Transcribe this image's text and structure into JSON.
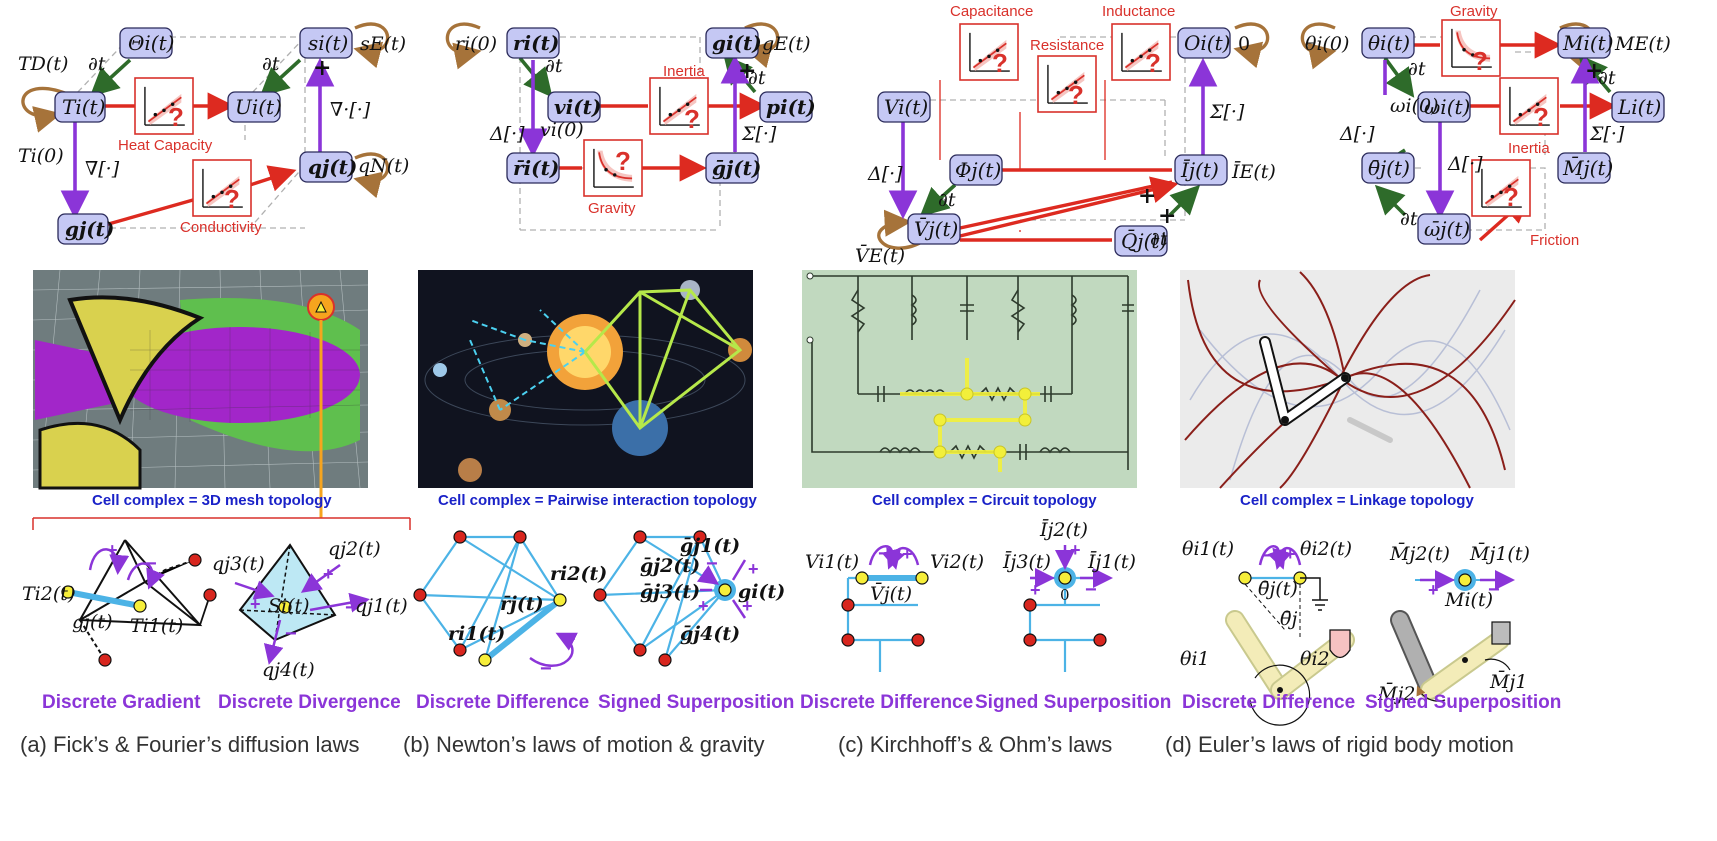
{
  "panels": {
    "a": {
      "nodes": {
        "theta": "Θi(t)",
        "s": "si(t)",
        "T": "Ti(t)",
        "U": "Ui(t)",
        "q": "qj(t)",
        "g": "gj(t)"
      },
      "laws": [
        "Heat Capacity",
        "Conductivity"
      ],
      "labels": {
        "TD": "TD(t)",
        "T0": "Ti(0)",
        "sE": "sE(t)",
        "qN": "qN(t)",
        "dt1": "∂t",
        "dt2": "∂t",
        "grad": "∇[·]",
        "div": "∇·[·]",
        "plus": "+"
      },
      "cell_caption": "Cell complex = 3D mesh topology",
      "bottom": {
        "t_i2": "Ti2(t)",
        "g_j": "gj(t)",
        "t_i1": "Ti1(t)",
        "q_j3": "qj3(t)",
        "q_j2": "qj2(t)",
        "s_i": "Si(t)",
        "q_j1": "qj1(t)",
        "q_j4": "qj4(t)"
      },
      "ops": [
        "Discrete Gradient",
        "Discrete Divergence"
      ],
      "caption": "(a) Fick’s & Fourier’s diffusion laws"
    },
    "b": {
      "nodes": {
        "r": "ri(t)",
        "g": "gi(t)",
        "v": "vi(t)",
        "p": "pi(t)",
        "rbar": "r̄i(t)",
        "gbar": "ḡj(t)"
      },
      "laws": [
        "Inertia",
        "Gravity"
      ],
      "labels": {
        "r0": "ri(0)",
        "gE": "gE(t)",
        "v0": "vi(0)",
        "dt1": "∂t",
        "dt2": "∂t",
        "lap": "Δ[·]",
        "sum": "Σ[·]",
        "plus": "+"
      },
      "cell_caption": "Cell complex = Pairwise interaction topology",
      "bottom": {
        "ri2": "ri2(t)",
        "rbarj": "r̄j(t)",
        "ri1": "ri1(t)",
        "gj1": "ḡj1(t)",
        "gj2": "ḡj2(t)",
        "gj3": "ḡj3(t)",
        "gi": "gi(t)",
        "gj4": "ḡj4(t)"
      },
      "ops": [
        "Discrete Difference",
        "Signed Superposition"
      ],
      "caption": "(b) Newton’s laws of motion & gravity"
    },
    "c": {
      "nodes": {
        "O": "Oi(t)",
        "V": "Vi(t)",
        "Phi": "Φj(t)",
        "I": "Īj(t)",
        "Vbar": "V̄j(t)",
        "Q": "Q̄j(t)"
      },
      "laws": [
        "Capacitance",
        "Resistance",
        "Inductance"
      ],
      "labels": {
        "zero": "0",
        "IE": "ĪE(t)",
        "VE": "V̄E(t)",
        "dt1": "∂t",
        "dt2": "∂t",
        "lap": "Δ[·]",
        "sum": "Σ[·]",
        "plus1": "+",
        "plus2": "+"
      },
      "cell_caption": "Cell complex = Circuit topology",
      "bottom": {
        "vi1": "Vi1(t)",
        "vi2": "Vi2(t)",
        "vbarj": "V̄j(t)",
        "ij2": "Īj2(t)",
        "ij3": "Īj3(t)",
        "ij1": "Īj1(t)",
        "zero": "0"
      },
      "ops": [
        "Discrete Difference",
        "Signed Superposition"
      ],
      "caption": "(c) Kirchhoff’s & Ohm’s laws"
    },
    "d": {
      "nodes": {
        "theta": "θi(t)",
        "M": "Mi(t)",
        "omega": "ωi(t)",
        "L": "Li(t)",
        "thetabar": "θ̄j(t)",
        "Mbar": "M̄j(t)",
        "omegabar": "ω̄j(t)"
      },
      "laws": [
        "Gravity",
        "Inertia",
        "Friction"
      ],
      "labels": {
        "theta0": "θi(0)",
        "ME": "ME(t)",
        "omega0": "ωi(0)",
        "dt1": "∂t",
        "dt2": "∂t",
        "dt3": "∂t",
        "lap": "Δ[·]",
        "lap2": "Δ[·]",
        "sum": "Σ[·]",
        "plus": "+"
      },
      "cell_caption": "Cell complex = Linkage topology",
      "bottom": {
        "thi1": "θi1(t)",
        "thi2": "θi2(t)",
        "thbarj": "θ̄j(t)",
        "thbarj2": "θ̄j",
        "thi1b": "θi1",
        "thi2b": "θi2",
        "mj2": "M̄j2(t)",
        "mj1": "M̄j1(t)",
        "mi": "Mi(t)",
        "mj2b": "M̄j2",
        "mj1b": "M̄j1"
      },
      "ops": [
        "Discrete Difference",
        "Signed Superposition"
      ],
      "caption": "(d) Euler’s laws of rigid body motion"
    }
  },
  "colors": {
    "node_fill": "#c5c8f4",
    "law_red": "#d9312b",
    "operator_purple": "#8b35d8",
    "time_green": "#2e6b2a",
    "loop_brown": "#a6733a",
    "caption_blue": "#1a22c8",
    "edge_blue": "#4cb3e6"
  },
  "icons": [
    "law-plot-icon",
    "question-mark-icon",
    "mesh-image",
    "space-image",
    "circuit-image",
    "linkage-image"
  ]
}
